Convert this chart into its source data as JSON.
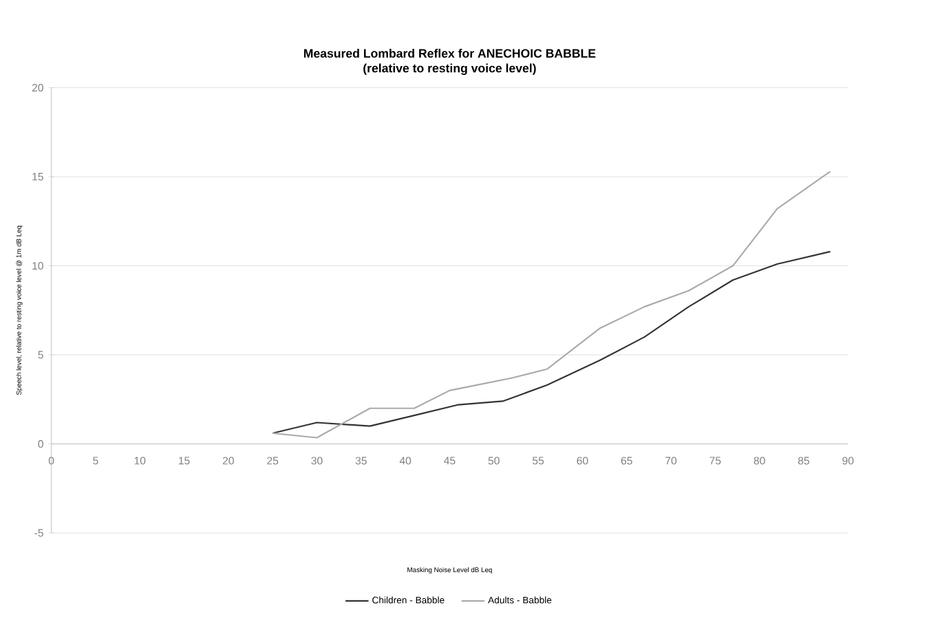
{
  "chart_data": {
    "type": "line",
    "title": "Measured Lombard Reflex for ANECHOIC BABBLE\n(relative to resting voice level)",
    "xlabel": "Masking Noise Level dB Leq",
    "ylabel": "Speech level, relative to resting voice level @ 1m dB Leq",
    "xlim": [
      0,
      90
    ],
    "xticks": [
      0,
      5,
      10,
      15,
      20,
      25,
      30,
      35,
      40,
      45,
      50,
      55,
      60,
      65,
      70,
      75,
      80,
      85,
      90
    ],
    "ylim": [
      -5,
      20
    ],
    "yticks": [
      -5,
      0,
      5,
      10,
      15,
      20
    ],
    "grid": "y",
    "legend": "bottom",
    "series": [
      {
        "name": "Children - Babble",
        "color": "#333333",
        "x": [
          25,
          30,
          36,
          41,
          46,
          51,
          56,
          62,
          67,
          72,
          77,
          82,
          88
        ],
        "values": [
          0.6,
          1.2,
          1.0,
          1.6,
          2.2,
          2.4,
          3.3,
          4.7,
          6.0,
          7.7,
          9.2,
          10.1,
          10.8
        ]
      },
      {
        "name": "Adults - Babble",
        "color": "#aaaaaa",
        "x": [
          25,
          30,
          36,
          41,
          45,
          48,
          52,
          56,
          62,
          67,
          72,
          77,
          82,
          88
        ],
        "values": [
          0.6,
          0.35,
          2.0,
          2.0,
          3.0,
          3.3,
          3.7,
          4.2,
          6.5,
          7.7,
          8.6,
          10.0,
          13.2,
          15.3
        ]
      }
    ]
  }
}
